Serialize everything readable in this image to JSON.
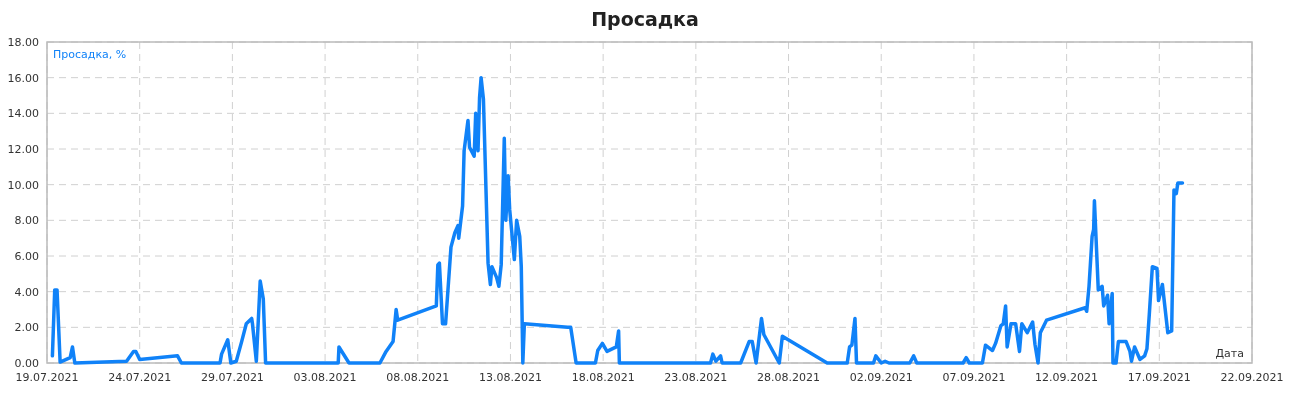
{
  "chart_data": {
    "type": "line",
    "title": "Просадка",
    "xlabel": "Дата",
    "legend": "top left",
    "grid": true,
    "line_style": "solid",
    "marker": "none",
    "xlim": [
      "2021-07-19",
      "2021-09-22"
    ],
    "xticks": [
      {
        "value": "2021-07-19",
        "label": "19.07.2021"
      },
      {
        "value": "2021-07-24",
        "label": "24.07.2021"
      },
      {
        "value": "2021-07-29",
        "label": "29.07.2021"
      },
      {
        "value": "2021-08-03",
        "label": "03.08.2021"
      },
      {
        "value": "2021-08-08",
        "label": "08.08.2021"
      },
      {
        "value": "2021-08-13",
        "label": "13.08.2021"
      },
      {
        "value": "2021-08-18",
        "label": "18.08.2021"
      },
      {
        "value": "2021-08-23",
        "label": "23.08.2021"
      },
      {
        "value": "2021-08-28",
        "label": "28.08.2021"
      },
      {
        "value": "2021-09-02",
        "label": "02.09.2021"
      },
      {
        "value": "2021-09-07",
        "label": "07.09.2021"
      },
      {
        "value": "2021-09-12",
        "label": "12.09.2021"
      },
      {
        "value": "2021-09-17",
        "label": "17.09.2021"
      },
      {
        "value": "2021-09-22",
        "label": "22.09.2021"
      }
    ],
    "ylim": [
      0,
      18
    ],
    "yticks": [
      {
        "value": 0,
        "label": "0.00"
      },
      {
        "value": 2,
        "label": "2.00"
      },
      {
        "value": 4,
        "label": "4.00"
      },
      {
        "value": 6,
        "label": "6.00"
      },
      {
        "value": 8,
        "label": "8.00"
      },
      {
        "value": 10,
        "label": "10.00"
      },
      {
        "value": 12,
        "label": "12.00"
      },
      {
        "value": 14,
        "label": "14.00"
      },
      {
        "value": 16,
        "label": "16.00"
      },
      {
        "value": 18,
        "label": "18.00"
      }
    ],
    "series": [
      {
        "name": "Просадка, %",
        "color": "#1082f8",
        "x": [
          "2021-07-19T07:00",
          "2021-07-19T10:00",
          "2021-07-19T13:00",
          "2021-07-19T17:00",
          "2021-07-20T06:00",
          "2021-07-20T09:00",
          "2021-07-20T12:00",
          "2021-07-23T07:00",
          "2021-07-23T16:00",
          "2021-07-23T19:00",
          "2021-07-24T00:00",
          "2021-07-26T01:00",
          "2021-07-26T06:00",
          "2021-07-28T08:00",
          "2021-07-28T10:00",
          "2021-07-28T18:00",
          "2021-07-28T22:00",
          "2021-07-29T05:00",
          "2021-07-29T12:00",
          "2021-07-29T18:00",
          "2021-07-30T01:00",
          "2021-07-30T02:00",
          "2021-07-30T07:00",
          "2021-07-30T12:00",
          "2021-07-30T16:00",
          "2021-07-30T19:00",
          "2021-08-03T17:00",
          "2021-08-03T18:00",
          "2021-08-04T07:00",
          "2021-08-05T23:00",
          "2021-08-06T07:00",
          "2021-08-06T16:00",
          "2021-08-06T20:00",
          "2021-08-06T22:00",
          "2021-08-09T00:00",
          "2021-08-09T02:00",
          "2021-08-09T04:00",
          "2021-08-09T08:00",
          "2021-08-09T12:00",
          "2021-08-09T19:00",
          "2021-08-10T00:00",
          "2021-08-10T04:00",
          "2021-08-10T05:00",
          "2021-08-10T10:00",
          "2021-08-10T12:00",
          "2021-08-10T17:00",
          "2021-08-10T19:00",
          "2021-08-11T01:00",
          "2021-08-11T03:00",
          "2021-08-11T06:00",
          "2021-08-11T08:00",
          "2021-08-11T10:00",
          "2021-08-11T13:00",
          "2021-08-11T19:00",
          "2021-08-11T22:00",
          "2021-08-12T00:00",
          "2021-08-12T06:00",
          "2021-08-12T09:00",
          "2021-08-12T12:00",
          "2021-08-12T16:00",
          "2021-08-12T18:00",
          "2021-08-12T21:00",
          "2021-08-12T23:00",
          "2021-08-13T05:00",
          "2021-08-13T08:00",
          "2021-08-13T12:00",
          "2021-08-13T14:00",
          "2021-08-13T16:00",
          "2021-08-13T18:00",
          "2021-08-16T02:00",
          "2021-08-16T06:00",
          "2021-08-16T13:00",
          "2021-08-17T14:00",
          "2021-08-17T17:00",
          "2021-08-17T23:00",
          "2021-08-18T05:00",
          "2021-08-18T17:00",
          "2021-08-18T20:00",
          "2021-08-18T21:00",
          "2021-08-23T19:00",
          "2021-08-23T22:00",
          "2021-08-24T02:00",
          "2021-08-24T08:00",
          "2021-08-24T10:00",
          "2021-08-25T10:00",
          "2021-08-25T21:00",
          "2021-08-26T01:00",
          "2021-08-26T06:00",
          "2021-08-26T13:00",
          "2021-08-26T16:00",
          "2021-08-27T12:00",
          "2021-08-27T16:00",
          "2021-08-30T02:00",
          "2021-08-31T04:00",
          "2021-08-31T07:00",
          "2021-08-31T10:00",
          "2021-08-31T14:00",
          "2021-08-31T16:00",
          "2021-09-01T14:00",
          "2021-09-01T17:00",
          "2021-09-02T00:00",
          "2021-09-02T05:00",
          "2021-09-02T10:00",
          "2021-09-03T13:00",
          "2021-09-03T18:00",
          "2021-09-03T22:00",
          "2021-09-06T10:00",
          "2021-09-06T14:00",
          "2021-09-06T18:00",
          "2021-09-07T11:00",
          "2021-09-07T15:00",
          "2021-09-08T00:00",
          "2021-09-08T04:00",
          "2021-09-08T11:00",
          "2021-09-08T14:00",
          "2021-09-08T17:00",
          "2021-09-08T19:00",
          "2021-09-09T00:00",
          "2021-09-09T06:00",
          "2021-09-09T11:00",
          "2021-09-09T14:00",
          "2021-09-09T21:00",
          "2021-09-10T04:00",
          "2021-09-10T07:00",
          "2021-09-10T11:00",
          "2021-09-10T14:00",
          "2021-09-10T22:00",
          "2021-09-13T00:00",
          "2021-09-13T02:00",
          "2021-09-13T05:00",
          "2021-09-13T09:00",
          "2021-09-13T11:00",
          "2021-09-13T12:00",
          "2021-09-13T17:00",
          "2021-09-13T22:00",
          "2021-09-14T00:00",
          "2021-09-14T05:00",
          "2021-09-14T07:00",
          "2021-09-14T11:00",
          "2021-09-14T12:00",
          "2021-09-14T16:00",
          "2021-09-14T19:00",
          "2021-09-15T05:00",
          "2021-09-15T10:00",
          "2021-09-15T12:00",
          "2021-09-15T16:00",
          "2021-09-15T23:00",
          "2021-09-16T05:00",
          "2021-09-16T08:00",
          "2021-09-16T11:00",
          "2021-09-16T15:00",
          "2021-09-16T21:00",
          "2021-09-16T23:00",
          "2021-09-17T04:00",
          "2021-09-17T11:00",
          "2021-09-17T16:00",
          "2021-09-17T19:00",
          "2021-09-17T22:00",
          "2021-09-18T00:00",
          "2021-09-18T06:00"
        ],
        "values": [
          0.4,
          4.1,
          4.1,
          0.05,
          0.3,
          0.9,
          0,
          0.1,
          0.65,
          0.65,
          0.2,
          0.4,
          0,
          0,
          0.5,
          1.3,
          0,
          0.1,
          1.2,
          2.2,
          2.5,
          2.2,
          0.1,
          4.6,
          3.6,
          0,
          0,
          0.9,
          0,
          0,
          0.65,
          1.2,
          3,
          2.4,
          3.2,
          5.5,
          5.6,
          2.2,
          2.2,
          6.5,
          7.3,
          7.7,
          7,
          8.8,
          11.9,
          13.6,
          12.1,
          11.6,
          14,
          11.9,
          14.9,
          16,
          14.8,
          5.6,
          4.4,
          5.4,
          4.8,
          4.3,
          5.5,
          12.6,
          8,
          10.5,
          8.6,
          5.8,
          8,
          7.1,
          5.4,
          0,
          2.2,
          2,
          2,
          0,
          0,
          0.7,
          1.1,
          0.65,
          0.9,
          1.8,
          0,
          0,
          0.5,
          0.1,
          0.4,
          0,
          0,
          1.2,
          1.2,
          0,
          2.5,
          1.6,
          0,
          1.5,
          0,
          0,
          0.9,
          1,
          2.5,
          0,
          0,
          0.4,
          0,
          0.1,
          0,
          0,
          0.4,
          0,
          0,
          0.3,
          0,
          0,
          1,
          0.7,
          1.1,
          2.1,
          2.2,
          3.2,
          0.9,
          2.2,
          2.2,
          0.65,
          2.2,
          1.7,
          2.3,
          1.05,
          0,
          1.7,
          2.4,
          3.1,
          2.9,
          4.3,
          7.1,
          7.5,
          9.1,
          4.1,
          4.3,
          3.2,
          3.8,
          2.2,
          3.9,
          0,
          0,
          1.2,
          1.2,
          0.65,
          0.1,
          0.9,
          0.2,
          0.4,
          0.8,
          2.7,
          5.4,
          5.3,
          3.5,
          4.4,
          1.7,
          1.8,
          9.7,
          9.5,
          10.1,
          10.1
        ]
      }
    ]
  }
}
